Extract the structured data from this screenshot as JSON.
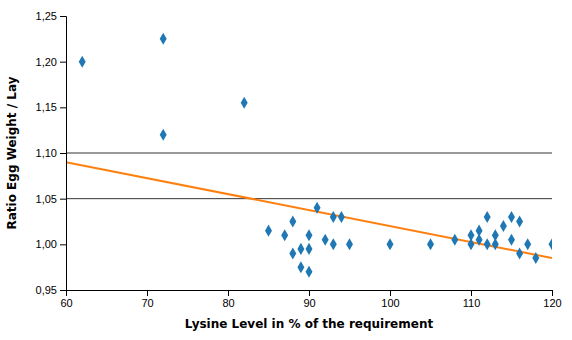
{
  "chart_data": {
    "type": "scatter",
    "xlabel": "Lysine Level in % of the requirement",
    "ylabel": "Ratio Egg Weight / Lay",
    "xlim": [
      60,
      120
    ],
    "ylim": [
      0.95,
      1.25
    ],
    "xticks": [
      60,
      70,
      80,
      90,
      100,
      110,
      120
    ],
    "yticks": [
      {
        "value": 0.95,
        "label": "0,95"
      },
      {
        "value": 1.0,
        "label": "1,00"
      },
      {
        "value": 1.05,
        "label": "1,05"
      },
      {
        "value": 1.1,
        "label": "1,10"
      },
      {
        "value": 1.15,
        "label": "1,15"
      },
      {
        "value": 1.2,
        "label": "1,20"
      },
      {
        "value": 1.25,
        "label": "1,25"
      }
    ],
    "grid": false,
    "hlines": [
      1.05,
      1.1
    ],
    "series": [
      {
        "type": "scatter",
        "marker": "diamond",
        "x": [
          62,
          72,
          72,
          82,
          85,
          87,
          88,
          88,
          89,
          89,
          90,
          90,
          90,
          91,
          92,
          93,
          93,
          94,
          95,
          100,
          105,
          108,
          110,
          110,
          111,
          111,
          112,
          112,
          113,
          113,
          114,
          115,
          115,
          116,
          116,
          117,
          118,
          120
        ],
        "values": [
          1.2,
          1.225,
          1.12,
          1.155,
          1.015,
          1.01,
          1.025,
          0.99,
          0.975,
          0.995,
          1.01,
          0.995,
          0.97,
          1.04,
          1.005,
          1.03,
          1.0,
          1.03,
          1.0,
          1.0,
          1.0,
          1.005,
          1.01,
          1.0,
          1.015,
          1.005,
          1.03,
          1.0,
          1.01,
          1.0,
          1.02,
          1.03,
          1.005,
          1.025,
          0.99,
          1.0,
          0.985,
          1.0
        ]
      },
      {
        "type": "line",
        "x": [
          60,
          120
        ],
        "values": [
          1.09,
          0.985
        ]
      }
    ]
  }
}
